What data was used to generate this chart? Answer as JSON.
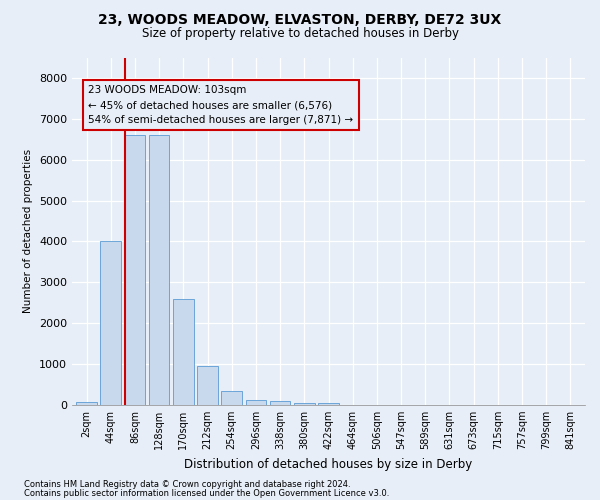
{
  "title_line1": "23, WOODS MEADOW, ELVASTON, DERBY, DE72 3UX",
  "title_line2": "Size of property relative to detached houses in Derby",
  "xlabel": "Distribution of detached houses by size in Derby",
  "ylabel": "Number of detached properties",
  "footnote1": "Contains HM Land Registry data © Crown copyright and database right 2024.",
  "footnote2": "Contains public sector information licensed under the Open Government Licence v3.0.",
  "annotation_line1": "23 WOODS MEADOW: 103sqm",
  "annotation_line2": "← 45% of detached houses are smaller (6,576)",
  "annotation_line3": "54% of semi-detached houses are larger (7,871) →",
  "bar_color": "#c9d9ed",
  "bar_edge_color": "#5b9bd5",
  "highlight_color": "#cc0000",
  "categories": [
    "2sqm",
    "44sqm",
    "86sqm",
    "128sqm",
    "170sqm",
    "212sqm",
    "254sqm",
    "296sqm",
    "338sqm",
    "380sqm",
    "422sqm",
    "464sqm",
    "506sqm",
    "547sqm",
    "589sqm",
    "631sqm",
    "673sqm",
    "715sqm",
    "757sqm",
    "799sqm",
    "841sqm"
  ],
  "values": [
    80,
    4000,
    6600,
    6600,
    2600,
    950,
    350,
    130,
    110,
    60,
    55,
    0,
    0,
    0,
    0,
    0,
    0,
    0,
    0,
    0,
    0
  ],
  "ylim": [
    0,
    8500
  ],
  "yticks": [
    0,
    1000,
    2000,
    3000,
    4000,
    5000,
    6000,
    7000,
    8000
  ],
  "red_line_bin_index": 2,
  "background_color": "#e8eef7",
  "grid_color": "#ffffff"
}
